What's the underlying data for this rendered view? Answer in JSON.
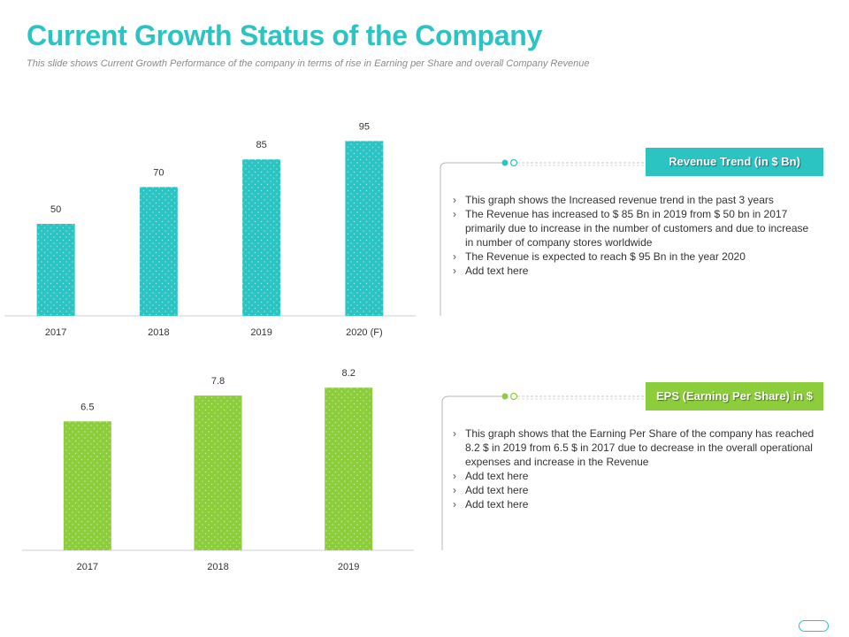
{
  "slide": {
    "title": "Current Growth Status of the Company",
    "subtitle": "This slide shows Current Growth Performance of the company in terms of rise in Earning per Share and overall Company Revenue"
  },
  "colors": {
    "title": "#2cc3c3",
    "revenue_bar": "#2cc3c3",
    "eps_bar": "#8ccd3b",
    "connector": "#b0b0b0"
  },
  "chart_data": [
    {
      "type": "bar",
      "categories": [
        "2017",
        "2018",
        "2019",
        "2020 (F)"
      ],
      "values": [
        50,
        70,
        85,
        95
      ],
      "value_labels": [
        "50",
        "70",
        "85",
        "95"
      ],
      "title": "Revenue Trend (in $ Bn)",
      "xlabel": "",
      "ylabel": "",
      "ylim": [
        0,
        100
      ],
      "grid": false,
      "color": "#2cc3c3"
    },
    {
      "type": "bar",
      "categories": [
        "2017",
        "2018",
        "2019"
      ],
      "values": [
        6.5,
        7.8,
        8.2
      ],
      "value_labels": [
        "6.5",
        "7.8",
        "8.2"
      ],
      "title": "EPS (Earning Per Share) in $",
      "xlabel": "",
      "ylabel": "",
      "ylim": [
        0,
        9.1
      ],
      "grid": false,
      "color": "#8ccd3b"
    }
  ],
  "revenue_panel": {
    "legend": "Revenue Trend (in $ Bn)",
    "bullets": [
      "This graph shows the Increased revenue  trend in the past 3 years",
      "The Revenue  has increased to $ 85 Bn in 2019 from $ 50 bn in 2017 primarily due to increase in the number of customers and due to increase in number of company stores worldwide",
      "The Revenue  is expected to reach $ 95 Bn in the year 2020",
      "Add text here"
    ]
  },
  "eps_panel": {
    "legend": "EPS (Earning Per Share) in $",
    "bullets": [
      "This graph shows that the Earning Per Share of the company has reached 8.2 $ in 2019 from 6.5 $ in 2017 due to decrease in the overall operational expenses and increase in the Revenue",
      "Add text here",
      "Add text here",
      "Add text here"
    ]
  }
}
